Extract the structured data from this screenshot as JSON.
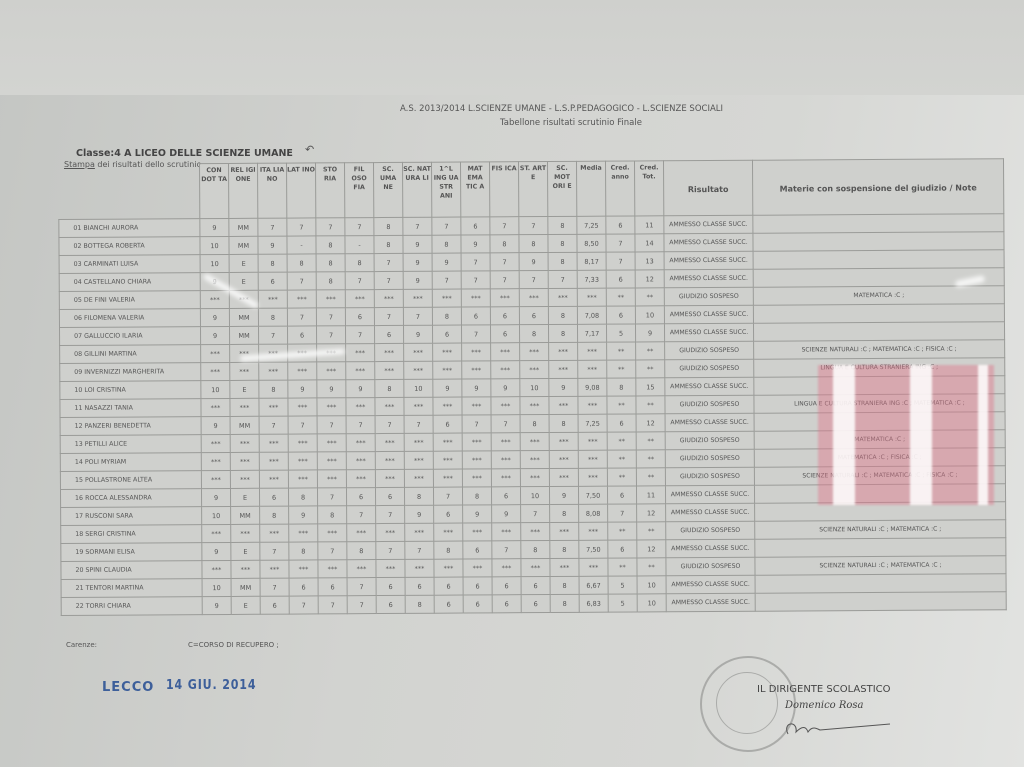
{
  "header": {
    "line1": "A.S. 2013/2014 L.SCIENZE UMANE - L.S.P.PEDAGOGICO - L.SCIENZE SOCIALI",
    "line2": "Tabellone risultati scrutinio Finale",
    "classe": "Classe:4 A LICEO DELLE SCIENZE UMANE",
    "stampa_link": "Stampa",
    "stampa_rest": " dei risultati dello scrutinio",
    "back_icon": "back-arrow-icon"
  },
  "columns": [
    "CON DOT TA",
    "REL IGI ONE",
    "ITA LIA NO",
    "LAT INO",
    "STO RIA",
    "FIL OSO FIA",
    "SC. UMA NE",
    "SC. NAT URA LI",
    "1^L ING UA STR ANI",
    "MAT EMA TIC A",
    "FIS ICA",
    "ST. ART E",
    "SC. MOT ORI E",
    "Media",
    "Cred. anno",
    "Cred. Tot.",
    "Risultato",
    "Materie con sospensione del giudizio / Note"
  ],
  "rows": [
    {
      "name": "01 BIANCHI AURORA",
      "grades": [
        "9",
        "MM",
        "7",
        "7",
        "7",
        "7",
        "8",
        "7",
        "7",
        "6",
        "7",
        "7",
        "8",
        "7,25",
        "6",
        "11"
      ],
      "result": "AMMESSO CLASSE SUCC.",
      "note": ""
    },
    {
      "name": "02 BOTTEGA ROBERTA",
      "grades": [
        "10",
        "MM",
        "9",
        "-",
        "8",
        "-",
        "8",
        "9",
        "8",
        "9",
        "8",
        "8",
        "8",
        "8,50",
        "7",
        "14"
      ],
      "result": "AMMESSO CLASSE SUCC.",
      "note": ""
    },
    {
      "name": "03 CARMINATI LUISA",
      "grades": [
        "10",
        "E",
        "8",
        "8",
        "8",
        "8",
        "7",
        "9",
        "9",
        "7",
        "7",
        "9",
        "8",
        "8,17",
        "7",
        "13"
      ],
      "result": "AMMESSO CLASSE SUCC.",
      "note": ""
    },
    {
      "name": "04 CASTELLANO CHIARA",
      "grades": [
        "9",
        "E",
        "6",
        "7",
        "8",
        "7",
        "7",
        "9",
        "7",
        "7",
        "7",
        "7",
        "7",
        "7,33",
        "6",
        "12"
      ],
      "result": "AMMESSO CLASSE SUCC.",
      "note": ""
    },
    {
      "name": "05 DE FINI VALERIA",
      "grades": [
        "***",
        "***",
        "***",
        "***",
        "***",
        "***",
        "***",
        "***",
        "***",
        "***",
        "***",
        "***",
        "***",
        "***",
        "**",
        "**"
      ],
      "result": "GIUDIZIO SOSPESO",
      "note": "MATEMATICA :C ;"
    },
    {
      "name": "06 FILOMENA VALERIA",
      "grades": [
        "9",
        "MM",
        "8",
        "7",
        "7",
        "6",
        "7",
        "7",
        "8",
        "6",
        "6",
        "6",
        "8",
        "7,08",
        "6",
        "10"
      ],
      "result": "AMMESSO CLASSE SUCC.",
      "note": ""
    },
    {
      "name": "07 GALLUCCIO ILARIA",
      "grades": [
        "9",
        "MM",
        "7",
        "6",
        "7",
        "7",
        "6",
        "9",
        "6",
        "7",
        "6",
        "8",
        "8",
        "7,17",
        "5",
        "9"
      ],
      "result": "AMMESSO CLASSE SUCC.",
      "note": ""
    },
    {
      "name": "08 GILLINI MARTINA",
      "grades": [
        "***",
        "***",
        "***",
        "***",
        "***",
        "***",
        "***",
        "***",
        "***",
        "***",
        "***",
        "***",
        "***",
        "***",
        "**",
        "**"
      ],
      "result": "GIUDIZIO SOSPESO",
      "note": "SCIENZE NATURALI :C ; MATEMATICA :C ; FISICA :C ;"
    },
    {
      "name": "09 INVERNIZZI MARGHERITA",
      "grades": [
        "***",
        "***",
        "***",
        "***",
        "***",
        "***",
        "***",
        "***",
        "***",
        "***",
        "***",
        "***",
        "***",
        "***",
        "**",
        "**"
      ],
      "result": "GIUDIZIO SOSPESO",
      "note": "LINGUA E CULTURA STRANIERA ING :C ;"
    },
    {
      "name": "10 LOI CRISTINA",
      "grades": [
        "10",
        "E",
        "8",
        "9",
        "9",
        "9",
        "8",
        "10",
        "9",
        "9",
        "9",
        "10",
        "9",
        "9,08",
        "8",
        "15"
      ],
      "result": "AMMESSO CLASSE SUCC.",
      "note": ""
    },
    {
      "name": "11 NASAZZI TANIA",
      "grades": [
        "***",
        "***",
        "***",
        "***",
        "***",
        "***",
        "***",
        "***",
        "***",
        "***",
        "***",
        "***",
        "***",
        "***",
        "**",
        "**"
      ],
      "result": "GIUDIZIO SOSPESO",
      "note": "LINGUA E CULTURA STRANIERA ING :C ; MATEMATICA :C ;"
    },
    {
      "name": "12 PANZERI BENEDETTA",
      "grades": [
        "9",
        "MM",
        "7",
        "7",
        "7",
        "7",
        "7",
        "7",
        "6",
        "7",
        "7",
        "8",
        "8",
        "7,25",
        "6",
        "12"
      ],
      "result": "AMMESSO CLASSE SUCC.",
      "note": ""
    },
    {
      "name": "13 PETILLI ALICE",
      "grades": [
        "***",
        "***",
        "***",
        "***",
        "***",
        "***",
        "***",
        "***",
        "***",
        "***",
        "***",
        "***",
        "***",
        "***",
        "**",
        "**"
      ],
      "result": "GIUDIZIO SOSPESO",
      "note": "MATEMATICA :C ;"
    },
    {
      "name": "14 POLI MYRIAM",
      "grades": [
        "***",
        "***",
        "***",
        "***",
        "***",
        "***",
        "***",
        "***",
        "***",
        "***",
        "***",
        "***",
        "***",
        "***",
        "**",
        "**"
      ],
      "result": "GIUDIZIO SOSPESO",
      "note": "MATEMATICA :C ; FISICA :C ;"
    },
    {
      "name": "15 POLLASTRONE ALTEA",
      "grades": [
        "***",
        "***",
        "***",
        "***",
        "***",
        "***",
        "***",
        "***",
        "***",
        "***",
        "***",
        "***",
        "***",
        "***",
        "**",
        "**"
      ],
      "result": "GIUDIZIO SOSPESO",
      "note": "SCIENZE NATURALI :C ; MATEMATICA :C ; FISICA :C ;"
    },
    {
      "name": "16 ROCCA ALESSANDRA",
      "grades": [
        "9",
        "E",
        "6",
        "8",
        "7",
        "6",
        "6",
        "8",
        "7",
        "8",
        "6",
        "10",
        "9",
        "7,50",
        "6",
        "11"
      ],
      "result": "AMMESSO CLASSE SUCC.",
      "note": ""
    },
    {
      "name": "17 RUSCONI SARA",
      "grades": [
        "10",
        "MM",
        "8",
        "9",
        "8",
        "7",
        "7",
        "9",
        "6",
        "9",
        "9",
        "7",
        "8",
        "8,08",
        "7",
        "12"
      ],
      "result": "AMMESSO CLASSE SUCC.",
      "note": ""
    },
    {
      "name": "18 SERGI CRISTINA",
      "grades": [
        "***",
        "***",
        "***",
        "***",
        "***",
        "***",
        "***",
        "***",
        "***",
        "***",
        "***",
        "***",
        "***",
        "***",
        "**",
        "**"
      ],
      "result": "GIUDIZIO SOSPESO",
      "note": "SCIENZE NATURALI :C ; MATEMATICA :C ;"
    },
    {
      "name": "19 SORMANI ELISA",
      "grades": [
        "9",
        "E",
        "7",
        "8",
        "7",
        "8",
        "7",
        "7",
        "8",
        "6",
        "7",
        "8",
        "8",
        "7,50",
        "6",
        "12"
      ],
      "result": "AMMESSO CLASSE SUCC.",
      "note": ""
    },
    {
      "name": "20 SPINI CLAUDIA",
      "grades": [
        "***",
        "***",
        "***",
        "***",
        "***",
        "***",
        "***",
        "***",
        "***",
        "***",
        "***",
        "***",
        "***",
        "***",
        "**",
        "**"
      ],
      "result": "GIUDIZIO SOSPESO",
      "note": "SCIENZE NATURALI :C ; MATEMATICA :C ;"
    },
    {
      "name": "21 TENTORI MARTINA",
      "grades": [
        "10",
        "MM",
        "7",
        "6",
        "6",
        "7",
        "6",
        "6",
        "6",
        "6",
        "6",
        "6",
        "8",
        "6,67",
        "5",
        "10"
      ],
      "result": "AMMESSO CLASSE SUCC.",
      "note": ""
    },
    {
      "name": "22 TORRI CHIARA",
      "grades": [
        "9",
        "E",
        "6",
        "7",
        "7",
        "7",
        "6",
        "8",
        "6",
        "6",
        "6",
        "6",
        "8",
        "6,83",
        "5",
        "10"
      ],
      "result": "AMMESSO CLASSE SUCC.",
      "note": ""
    }
  ],
  "footer": {
    "carenze": "Carenze:",
    "legend": "C=CORSO DI RECUPERO ;",
    "place": "LECCO",
    "date": "14 GIU. 2014",
    "signer_title": "IL DIRIGENTE SCOLASTICO",
    "signer_name": "Domenico Rosa"
  },
  "colors": {
    "paper": "#cfd0cd",
    "stamp_ink": "#3d5f9a"
  }
}
